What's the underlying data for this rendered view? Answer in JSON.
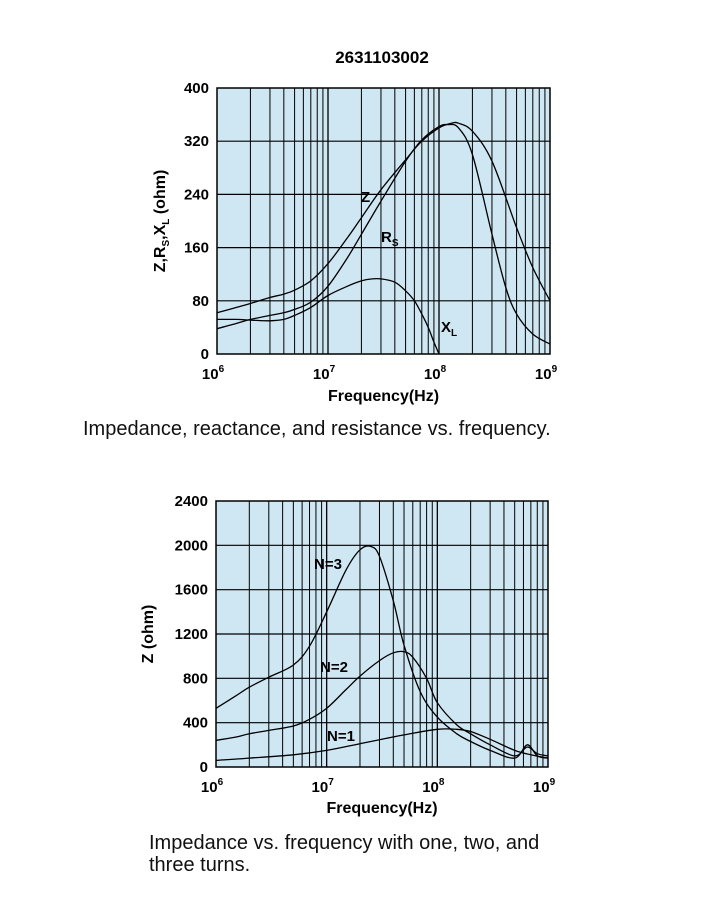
{
  "chart_data": [
    {
      "type": "line",
      "title": "2631103002",
      "xlabel": "Frequency(Hz)",
      "ylabel": "Z,Rs,XL (ohm)",
      "xscale": "log",
      "xlim": [
        1000000,
        1000000000
      ],
      "ylim": [
        0,
        400
      ],
      "yticks": [
        "0",
        "80",
        "160",
        "240",
        "320",
        "400"
      ],
      "xticks": [
        {
          "base": "10",
          "exp": "6"
        },
        {
          "base": "10",
          "exp": "7"
        },
        {
          "base": "10",
          "exp": "8"
        },
        {
          "base": "10",
          "exp": "9"
        }
      ],
      "grid": true,
      "background": "#cfe6f3",
      "series": [
        {
          "name": "Z",
          "label": "Z",
          "x": [
            1000000,
            1500000,
            2000000,
            3000000,
            4000000,
            5000000,
            7000000,
            10000000,
            15000000,
            20000000,
            30000000,
            50000000,
            70000000,
            100000000,
            130000000,
            150000000,
            200000000,
            300000000,
            500000000,
            700000000,
            1000000000
          ],
          "values": [
            62,
            70,
            76,
            85,
            90,
            96,
            110,
            136,
            175,
            205,
            247,
            292,
            320,
            340,
            347,
            347,
            335,
            290,
            190,
            130,
            80
          ]
        },
        {
          "name": "Rs",
          "label": "R",
          "label_sub": "S",
          "x": [
            1000000,
            1500000,
            2000000,
            3000000,
            4000000,
            5000000,
            7000000,
            10000000,
            15000000,
            20000000,
            30000000,
            50000000,
            70000000,
            100000000,
            120000000,
            150000000,
            200000000,
            300000000,
            400000000,
            500000000,
            700000000,
            1000000000
          ],
          "values": [
            38,
            46,
            52,
            58,
            62,
            67,
            78,
            102,
            145,
            180,
            230,
            290,
            322,
            342,
            345,
            340,
            300,
            180,
            100,
            60,
            30,
            15
          ]
        },
        {
          "name": "XL",
          "label": "X",
          "label_sub": "L",
          "x": [
            1000000,
            1500000,
            2000000,
            3000000,
            4000000,
            5000000,
            7000000,
            10000000,
            15000000,
            20000000,
            25000000,
            30000000,
            40000000,
            50000000,
            60000000,
            70000000,
            80000000,
            90000000,
            100000000
          ],
          "values": [
            52,
            52,
            51,
            50,
            52,
            58,
            70,
            88,
            102,
            110,
            113,
            113,
            108,
            95,
            80,
            60,
            40,
            18,
            0
          ]
        }
      ]
    },
    {
      "type": "line",
      "title": "",
      "xlabel": "Frequency(Hz)",
      "ylabel": "Z (ohm)",
      "xscale": "log",
      "xlim": [
        1000000,
        1000000000
      ],
      "ylim": [
        0,
        2400
      ],
      "yticks": [
        "0",
        "400",
        "800",
        "1200",
        "1600",
        "2000",
        "2400"
      ],
      "xticks": [
        {
          "base": "10",
          "exp": "6"
        },
        {
          "base": "10",
          "exp": "7"
        },
        {
          "base": "10",
          "exp": "8"
        },
        {
          "base": "10",
          "exp": "9"
        }
      ],
      "grid": true,
      "background": "#cfe6f3",
      "series": [
        {
          "name": "N=3",
          "label": "N=3",
          "x": [
            1000000,
            1500000,
            2000000,
            3000000,
            5000000,
            7000000,
            10000000,
            15000000,
            20000000,
            25000000,
            30000000,
            40000000,
            50000000,
            70000000,
            100000000,
            150000000,
            200000000,
            300000000,
            500000000,
            650000000,
            800000000,
            1000000000
          ],
          "values": [
            530,
            640,
            720,
            810,
            920,
            1090,
            1400,
            1780,
            1960,
            1990,
            1900,
            1500,
            1100,
            680,
            450,
            300,
            230,
            150,
            80,
            200,
            100,
            80
          ]
        },
        {
          "name": "N=2",
          "label": "N=2",
          "x": [
            1000000,
            1500000,
            2000000,
            3000000,
            5000000,
            7000000,
            10000000,
            15000000,
            20000000,
            30000000,
            40000000,
            50000000,
            60000000,
            80000000,
            100000000,
            150000000,
            200000000,
            300000000,
            500000000,
            650000000,
            800000000,
            1000000000
          ],
          "values": [
            240,
            270,
            300,
            330,
            370,
            430,
            530,
            700,
            820,
            960,
            1030,
            1040,
            990,
            800,
            580,
            380,
            300,
            200,
            100,
            180,
            120,
            100
          ]
        },
        {
          "name": "N=1",
          "label": "N=1",
          "x": [
            1000000,
            2000000,
            5000000,
            10000000,
            20000000,
            50000000,
            100000000,
            150000000,
            200000000,
            300000000,
            500000000,
            700000000,
            1000000000
          ],
          "values": [
            60,
            80,
            110,
            150,
            210,
            290,
            340,
            340,
            320,
            250,
            150,
            110,
            80
          ]
        }
      ]
    }
  ],
  "captions": {
    "chart1": "Impedance, reactance, and resistance vs. frequency.",
    "chart2_line1": "Impedance vs. frequency with one, two, and",
    "chart2_line2": "three  turns."
  },
  "colors": {
    "plot_bg": "#cfe6f3",
    "ink": "#000000"
  }
}
